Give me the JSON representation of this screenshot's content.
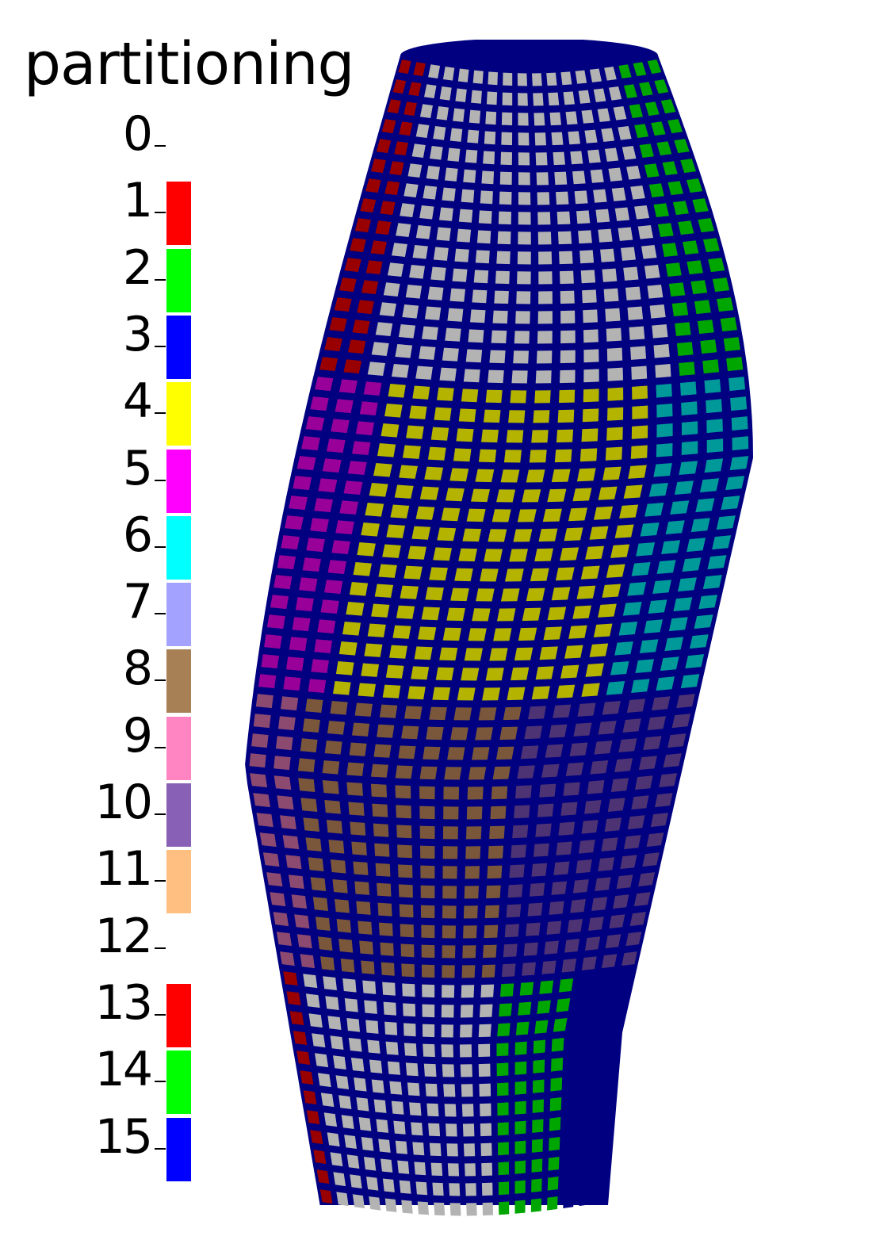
{
  "title": "partitioning",
  "legend": {
    "entries": [
      {
        "label": "0",
        "color": "#ffffff",
        "swatch": false
      },
      {
        "label": "1",
        "color": "#ff0000",
        "swatch": true
      },
      {
        "label": "2",
        "color": "#00ff00",
        "swatch": true
      },
      {
        "label": "3",
        "color": "#0000ff",
        "swatch": true
      },
      {
        "label": "4",
        "color": "#ffff00",
        "swatch": true
      },
      {
        "label": "5",
        "color": "#ff00ff",
        "swatch": true
      },
      {
        "label": "6",
        "color": "#00ffff",
        "swatch": true
      },
      {
        "label": "7",
        "color": "#a3a3ff",
        "swatch": true
      },
      {
        "label": "8",
        "color": "#a88056",
        "swatch": true
      },
      {
        "label": "9",
        "color": "#ff85c2",
        "swatch": true
      },
      {
        "label": "10",
        "color": "#8860b5",
        "swatch": true
      },
      {
        "label": "11",
        "color": "#ffbf80",
        "swatch": true
      },
      {
        "label": "12",
        "color": "#ffffff",
        "swatch": false
      },
      {
        "label": "13",
        "color": "#ff0000",
        "swatch": true
      },
      {
        "label": "14",
        "color": "#00ff00",
        "swatch": true
      },
      {
        "label": "15",
        "color": "#0000ff",
        "swatch": true
      }
    ]
  },
  "mesh": {
    "line_color": "#000080",
    "bands": [
      {
        "from": 0.0,
        "to": 0.28,
        "regions": [
          {
            "from": 0.0,
            "to": 0.12,
            "color": "#990000"
          },
          {
            "from": 0.12,
            "to": 0.82,
            "color": "#b3b3b3"
          },
          {
            "from": 0.82,
            "to": 1.0,
            "color": "#00a600"
          }
        ]
      },
      {
        "from": 0.28,
        "to": 0.55,
        "regions": [
          {
            "from": 0.0,
            "to": 0.16,
            "color": "#990099"
          },
          {
            "from": 0.16,
            "to": 0.8,
            "color": "#b3b300"
          },
          {
            "from": 0.8,
            "to": 1.0,
            "color": "#009999"
          }
        ]
      },
      {
        "from": 0.55,
        "to": 0.79,
        "regions": [
          {
            "from": 0.0,
            "to": 0.12,
            "color": "#8c4a70"
          },
          {
            "from": 0.12,
            "to": 0.62,
            "color": "#7a573a"
          },
          {
            "from": 0.62,
            "to": 1.0,
            "color": "#4d3373"
          }
        ]
      },
      {
        "from": 0.79,
        "to": 1.0,
        "regions": [
          {
            "from": 0.0,
            "to": 0.08,
            "color": "#990000"
          },
          {
            "from": 0.08,
            "to": 0.62,
            "color": "#b3b3b3"
          },
          {
            "from": 0.62,
            "to": 0.85,
            "color": "#00a600"
          },
          {
            "from": 0.85,
            "to": 1.0,
            "color": "#000080"
          }
        ]
      }
    ]
  }
}
